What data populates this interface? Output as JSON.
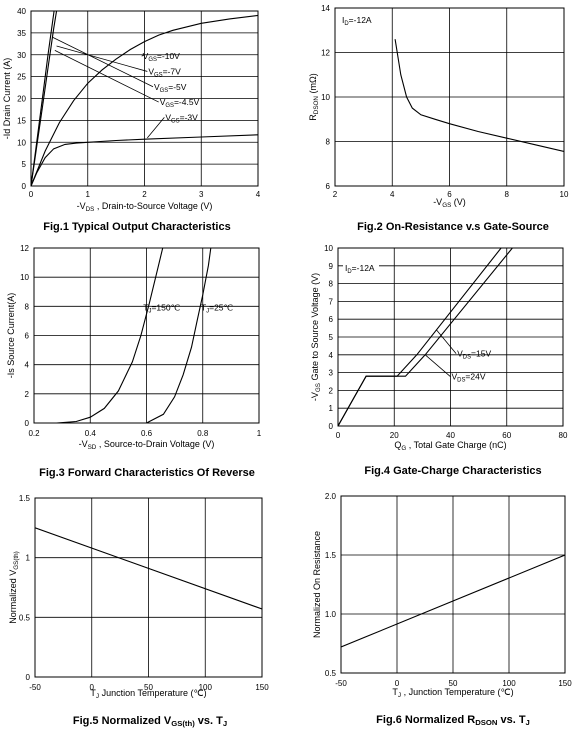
{
  "chart_data": [
    {
      "id": "fig1",
      "type": "line",
      "caption": "Fig.1 Typical Output Characteristics",
      "ylabel": "-Id Drain Current (A)",
      "xlabel_parts": [
        "-V",
        "DS",
        " , Drain-to-Source Voltage (V)"
      ],
      "xlim": [
        0,
        4
      ],
      "ylim": [
        0,
        40
      ],
      "xticks": [
        "0",
        "1",
        "2",
        "3",
        "4"
      ],
      "yticks": [
        "0",
        "5",
        "10",
        "15",
        "20",
        "25",
        "30",
        "35",
        "40"
      ],
      "series": [
        {
          "name": "VGS=-10V",
          "x": [
            0,
            0.1,
            0.2,
            0.3,
            0.45
          ],
          "y": [
            0,
            10,
            20,
            30,
            44
          ]
        },
        {
          "name": "VGS=-7V",
          "x": [
            0,
            0.1,
            0.2,
            0.3,
            0.4,
            0.5
          ],
          "y": [
            0,
            9,
            18,
            27,
            36,
            44
          ]
        },
        {
          "name": "VGS=-5V",
          "x": [
            0,
            0.25,
            0.5,
            0.75,
            1.0,
            1.25,
            1.5,
            1.75,
            2.0,
            2.25,
            2.5,
            3.0,
            3.5,
            4.0
          ],
          "y": [
            0,
            8,
            14.5,
            19.5,
            23.5,
            26.5,
            29,
            31.2,
            33,
            34.5,
            35.6,
            37.2,
            38.2,
            39
          ]
        },
        {
          "name": "VGS=-3V",
          "x": [
            0,
            0.1,
            0.25,
            0.4,
            0.6,
            0.8,
            1.0,
            1.5,
            2.0,
            3.0,
            4.0
          ],
          "y": [
            0,
            3,
            6.5,
            8.5,
            9.5,
            9.8,
            10,
            10.4,
            10.7,
            11.2,
            11.7
          ]
        }
      ],
      "annotations": [
        {
          "label": "V",
          "sub": "GS",
          "rest": "=-10V",
          "x": 2.0,
          "y": 30,
          "tx": 1.95,
          "ty": 29
        },
        {
          "label": "V",
          "sub": "GS",
          "rest": "=-7V",
          "x": 0.45,
          "y": 32,
          "tx": 2.05,
          "ty": 25.5
        },
        {
          "label": "V",
          "sub": "GS",
          "rest": "=-5V",
          "x": 0.38,
          "y": 34,
          "tx": 2.15,
          "ty": 22
        },
        {
          "label": "V",
          "sub": "GS",
          "rest": "=-4.5V",
          "x": 0.42,
          "y": 31,
          "tx": 2.25,
          "ty": 18.5
        },
        {
          "label": "V",
          "sub": "GS",
          "rest": "=-3V",
          "x": 2.05,
          "y": 11,
          "tx": 2.35,
          "ty": 15
        }
      ]
    },
    {
      "id": "fig2",
      "type": "line",
      "caption": "Fig.2 On-Resistance v.s Gate-Source",
      "ylabel_parts": [
        "R",
        "DSON",
        " (mΩ)"
      ],
      "xlabel_parts": [
        "-V",
        "GS",
        " (V)"
      ],
      "xlim": [
        2,
        10
      ],
      "ylim": [
        6,
        14
      ],
      "xticks": [
        "2",
        "4",
        "6",
        "8",
        "10"
      ],
      "yticks": [
        "6",
        "8",
        "10",
        "12",
        "14"
      ],
      "condition_parts": [
        "I",
        "D",
        "=-12A"
      ],
      "series": [
        {
          "name": "",
          "x": [
            4.1,
            4.3,
            4.5,
            4.7,
            5.0,
            5.5,
            6.0,
            7.0,
            8.0,
            9.0,
            10.0
          ],
          "y": [
            12.6,
            11.0,
            10.0,
            9.5,
            9.2,
            9.0,
            8.8,
            8.45,
            8.15,
            7.85,
            7.55
          ]
        }
      ]
    },
    {
      "id": "fig3",
      "type": "line",
      "caption": "Fig.3 Forward Characteristics Of Reverse",
      "ylabel": "-Is Source Current(A)",
      "xlabel_parts": [
        "-V",
        "SD",
        " , Source-to-Drain Voltage (V)"
      ],
      "xlim": [
        0.2,
        1.0
      ],
      "ylim": [
        0,
        12
      ],
      "xticks": [
        "0.2",
        "0.4",
        "0.6",
        "0.8",
        "1"
      ],
      "yticks": [
        "0",
        "2",
        "4",
        "6",
        "8",
        "10",
        "12"
      ],
      "series": [
        {
          "name": "TJ=150℃",
          "x": [
            0.28,
            0.35,
            0.4,
            0.45,
            0.5,
            0.55,
            0.58,
            0.61,
            0.64,
            0.66
          ],
          "y": [
            0,
            0.1,
            0.4,
            1.0,
            2.2,
            4.2,
            6.0,
            8.2,
            10.6,
            12.2
          ]
        },
        {
          "name": "TJ=25℃",
          "x": [
            0.6,
            0.66,
            0.7,
            0.73,
            0.76,
            0.78,
            0.8,
            0.82,
            0.83
          ],
          "y": [
            0,
            0.6,
            1.8,
            3.3,
            5.2,
            7.0,
            8.8,
            10.8,
            12.2
          ]
        }
      ],
      "annotations": [
        {
          "label": "T",
          "sub": "J",
          "rest": "=150℃",
          "tx": 0.585,
          "ty": 7.7
        },
        {
          "label": "T",
          "sub": "J",
          "rest": "=25℃",
          "tx": 0.79,
          "ty": 7.7
        }
      ]
    },
    {
      "id": "fig4",
      "type": "line",
      "caption": "Fig.4 Gate-Charge Characteristics",
      "ylabel_parts": [
        "-V",
        "GS",
        "   Gate to Source Voltage (V)"
      ],
      "xlabel_parts": [
        "Q",
        "G",
        " , Total Gate Charge (nC)"
      ],
      "xlim": [
        0,
        80
      ],
      "ylim": [
        0,
        10
      ],
      "xticks": [
        "0",
        "20",
        "40",
        "60",
        "80"
      ],
      "yticks": [
        "0",
        "1",
        "2",
        "3",
        "4",
        "5",
        "6",
        "7",
        "8",
        "9",
        "10"
      ],
      "condition_parts": [
        "I",
        "D",
        "=-12A"
      ],
      "series": [
        {
          "name": "VDS=15V",
          "x": [
            0,
            10,
            21,
            28,
            58
          ],
          "y": [
            0,
            2.8,
            2.8,
            4.0,
            10.0
          ]
        },
        {
          "name": "VDS=24V",
          "x": [
            0,
            10,
            24,
            31,
            62
          ],
          "y": [
            0,
            2.8,
            2.8,
            4.0,
            10.0
          ]
        }
      ],
      "annotations": [
        {
          "label": "V",
          "sub": "DS",
          "rest": "=15V",
          "x": 35,
          "y": 5.4,
          "tx": 42,
          "ty": 3.9
        },
        {
          "label": "V",
          "sub": "DS",
          "rest": "=24V",
          "x": 31,
          "y": 4.0,
          "tx": 40,
          "ty": 2.6
        }
      ]
    },
    {
      "id": "fig5",
      "type": "line",
      "caption_parts": [
        "Fig.5 Normalized V",
        "GS(th)",
        " vs. T",
        "J"
      ],
      "ylabel_parts": [
        "Normalized V",
        "GS(th)"
      ],
      "xlabel_parts": [
        "T",
        "J",
        " Junction Temperature (℃)"
      ],
      "xlim": [
        -50,
        150
      ],
      "ylim": [
        0,
        1.5
      ],
      "xticks": [
        "-50",
        "0",
        "50",
        "100",
        "150"
      ],
      "yticks": [
        "0",
        "0.5",
        "1",
        "1.5"
      ],
      "series": [
        {
          "name": "",
          "x": [
            -50,
            150
          ],
          "y": [
            1.25,
            0.57
          ]
        }
      ]
    },
    {
      "id": "fig6",
      "type": "line",
      "caption_parts": [
        "Fig.6 Normalized R",
        "DSON",
        " vs. T",
        "J"
      ],
      "ylabel": "Normalized On Resistance",
      "xlabel_parts": [
        "T",
        "J",
        " , Junction Temperature (℃)"
      ],
      "xlim": [
        -50,
        150
      ],
      "ylim": [
        0.5,
        2.0
      ],
      "xticks": [
        "-50",
        "0",
        "50",
        "100",
        "150"
      ],
      "yticks": [
        "0.5",
        "1.0",
        "1.5",
        "2.0"
      ],
      "series": [
        {
          "name": "",
          "x": [
            -50,
            150
          ],
          "y": [
            0.72,
            1.5
          ]
        }
      ]
    }
  ]
}
